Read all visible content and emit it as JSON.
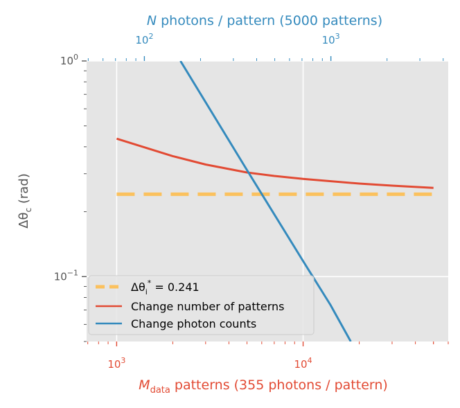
{
  "colors": {
    "plot_bg": "#e5e5e5",
    "grid": "#ffffff",
    "top_axis": "#348abd",
    "bottom_axis": "#e24a33",
    "left_axis": "#555555",
    "dashed_line": "#fbc15e",
    "red_line": "#e24a33",
    "blue_line": "#348abd"
  },
  "chart_data": {
    "type": "line",
    "title": "",
    "xscale": "log",
    "yscale": "log",
    "xlim": [
      690,
      60000
    ],
    "ylim": [
      0.05,
      1.0
    ],
    "grid": true,
    "xlabel": {
      "main": "M",
      "sub": "data",
      "rest": " patterns (355 photons / pattern)"
    },
    "x_ticks": [
      {
        "value": 1000,
        "base": "10",
        "exp": "3"
      },
      {
        "value": 10000,
        "base": "10",
        "exp": "4"
      }
    ],
    "ylabel": {
      "prefix": "Δθ",
      "sub": "c",
      "unit": " (rad)"
    },
    "y_ticks": [
      {
        "value": 1.0,
        "label": "10",
        "exp": "0"
      },
      {
        "value": 0.1,
        "label": "10",
        "exp": "−1"
      }
    ],
    "top_axis": {
      "label_var": "N",
      "label_rest": " photons / pattern (5000 patterns)",
      "xlim": [
        49,
        4257
      ],
      "ticks": [
        {
          "value": 100,
          "base": "10",
          "exp": "2"
        },
        {
          "value": 1000,
          "base": "10",
          "exp": "3"
        }
      ]
    },
    "series": [
      {
        "name": "Δθ_i* = 0.241",
        "legend_prefix": "Δθ",
        "legend_sub": "i",
        "legend_sup": "*",
        "legend_rest": " = 0.241",
        "style": "dashed",
        "x": [
          1000,
          50000
        ],
        "y": [
          0.241,
          0.241
        ]
      },
      {
        "name": "Change number of patterns",
        "legend_text": "Change number of patterns",
        "style": "solid",
        "x": [
          1000,
          2000,
          3000,
          5000,
          7000,
          10000,
          20000,
          30000,
          50000
        ],
        "y": [
          0.436,
          0.362,
          0.331,
          0.304,
          0.293,
          0.284,
          0.27,
          0.264,
          0.258
        ]
      },
      {
        "name": "Change photon counts",
        "legend_text": "Change photon counts",
        "style": "solid",
        "x": [
          2200,
          5000,
          10000,
          14000,
          18000
        ],
        "y": [
          1.0,
          0.312,
          0.118,
          0.074,
          0.05
        ]
      }
    ],
    "legend_position": "lower-left"
  }
}
